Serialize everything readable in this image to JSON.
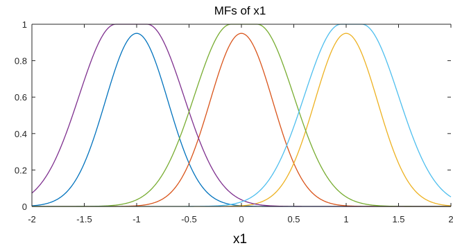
{
  "chart_data": {
    "type": "line",
    "title": "MFs of x1",
    "xlabel": "x1",
    "ylabel": "",
    "xlim": [
      -2,
      2
    ],
    "ylim": [
      0,
      1
    ],
    "xticks": [
      "-2",
      "-1.5",
      "-1",
      "-0.5",
      "0",
      "0.5",
      "1",
      "1.5",
      "2"
    ],
    "yticks": [
      "0",
      "0.2",
      "0.4",
      "0.6",
      "0.8",
      "1"
    ],
    "grid": false,
    "legend": "none",
    "series": [
      {
        "color": "#0072BD",
        "shape": "gauss",
        "center": -1.0,
        "sigma": 0.3,
        "peak": 0.95
      },
      {
        "color": "#D95319",
        "shape": "gauss",
        "center": 0.0,
        "sigma": 0.3,
        "peak": 0.95
      },
      {
        "color": "#EDB120",
        "shape": "gauss",
        "center": 1.0,
        "sigma": 0.3,
        "peak": 0.95
      },
      {
        "color": "#7E2F8E",
        "shape": "gauss2mf",
        "left_center": -1.2,
        "right_center": -0.9,
        "sigma": 0.35,
        "peak": 1.0
      },
      {
        "color": "#77AC30",
        "shape": "gauss2mf",
        "left_center": -0.1,
        "right_center": 0.15,
        "sigma": 0.35,
        "peak": 1.0
      },
      {
        "color": "#4DBEEE",
        "shape": "gauss2mf",
        "left_center": 0.95,
        "right_center": 1.15,
        "sigma": 0.35,
        "peak": 1.0
      }
    ]
  }
}
